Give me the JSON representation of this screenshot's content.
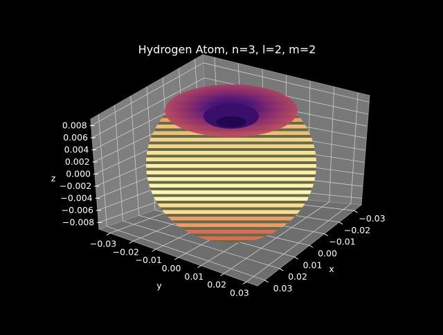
{
  "chart_data": {
    "type": "surface3d",
    "title": "Hydrogen Atom, n=3, l=2, m=2",
    "xlabel": "x",
    "ylabel": "y",
    "zlabel": "z",
    "x_ticks": [
      "−0.03",
      "−0.02",
      "−0.01",
      "0.00",
      "0.01",
      "0.02",
      "0.03"
    ],
    "y_ticks": [
      "−0.03",
      "−0.02",
      "−0.01",
      "0.00",
      "0.01",
      "0.02",
      "0.03"
    ],
    "z_ticks": [
      "0.008",
      "0.006",
      "0.004",
      "0.002",
      "0.000",
      "−0.002",
      "−0.004",
      "−0.006",
      "−0.008"
    ],
    "xlim": [
      -0.035,
      0.035
    ],
    "ylim": [
      -0.035,
      0.035
    ],
    "zlim": [
      -0.009,
      0.009
    ],
    "surface": "donut-shaped orbital surface (torus with central dimple)",
    "colormap": "magma",
    "grid": true,
    "background": "#000000",
    "pane_color": "#7f7f7f"
  }
}
